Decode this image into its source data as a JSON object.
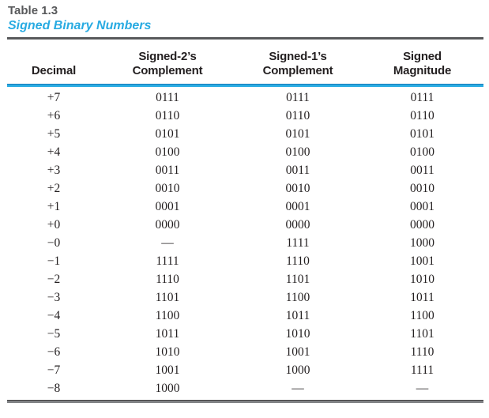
{
  "colors": {
    "accent_blue": "#29ABE2",
    "title_gray": "#58595B",
    "rule_dark_gray": "#58595B",
    "body_text": "#231F20"
  },
  "table": {
    "number_label": "Table 1.3",
    "caption": "Signed Binary Numbers",
    "headers": [
      {
        "line1": "",
        "line2": "Decimal"
      },
      {
        "line1": "Signed-2’s",
        "line2": "Complement"
      },
      {
        "line1": "Signed-1’s",
        "line2": "Complement"
      },
      {
        "line1": "Signed",
        "line2": "Magnitude"
      }
    ],
    "rows": [
      [
        "+7",
        "0111",
        "0111",
        "0111"
      ],
      [
        "+6",
        "0110",
        "0110",
        "0110"
      ],
      [
        "+5",
        "0101",
        "0101",
        "0101"
      ],
      [
        "+4",
        "0100",
        "0100",
        "0100"
      ],
      [
        "+3",
        "0011",
        "0011",
        "0011"
      ],
      [
        "+2",
        "0010",
        "0010",
        "0010"
      ],
      [
        "+1",
        "0001",
        "0001",
        "0001"
      ],
      [
        "+0",
        "0000",
        "0000",
        "0000"
      ],
      [
        "−0",
        "—",
        "1111",
        "1000"
      ],
      [
        "−1",
        "1111",
        "1110",
        "1001"
      ],
      [
        "−2",
        "1110",
        "1101",
        "1010"
      ],
      [
        "−3",
        "1101",
        "1100",
        "1011"
      ],
      [
        "−4",
        "1100",
        "1011",
        "1100"
      ],
      [
        "−5",
        "1011",
        "1010",
        "1101"
      ],
      [
        "−6",
        "1010",
        "1001",
        "1110"
      ],
      [
        "−7",
        "1001",
        "1000",
        "1111"
      ],
      [
        "−8",
        "1000",
        "—",
        "—"
      ]
    ]
  }
}
